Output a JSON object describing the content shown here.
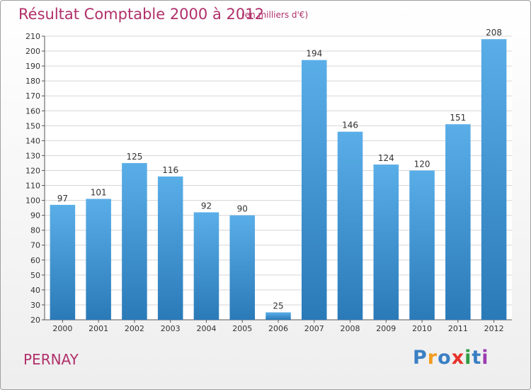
{
  "chart_data": {
    "type": "bar",
    "title": "Résultat Comptable 2000 à 2012",
    "subtitle": "(en milliers d'€)",
    "categories": [
      "2000",
      "2001",
      "2002",
      "2003",
      "2004",
      "2005",
      "2006",
      "2007",
      "2008",
      "2009",
      "2010",
      "2011",
      "2012"
    ],
    "values": [
      97,
      101,
      125,
      116,
      92,
      90,
      25,
      194,
      146,
      124,
      120,
      151,
      208
    ],
    "ylim": [
      20,
      210
    ],
    "yticks": [
      20,
      30,
      40,
      50,
      60,
      70,
      80,
      90,
      100,
      110,
      120,
      130,
      140,
      150,
      160,
      170,
      180,
      190,
      200,
      210
    ],
    "grid": true,
    "bar_color_top": "#5aaee8",
    "bar_color_bottom": "#2a7ab8"
  },
  "footer": {
    "place": "PERNAY",
    "logo": "Proxiti",
    "logo_colors": [
      "#3a7fc4",
      "#f29c1f",
      "#3a7fc4",
      "#e8322b",
      "#2e9e43",
      "#3a7fc4",
      "#9b3bb0"
    ]
  }
}
